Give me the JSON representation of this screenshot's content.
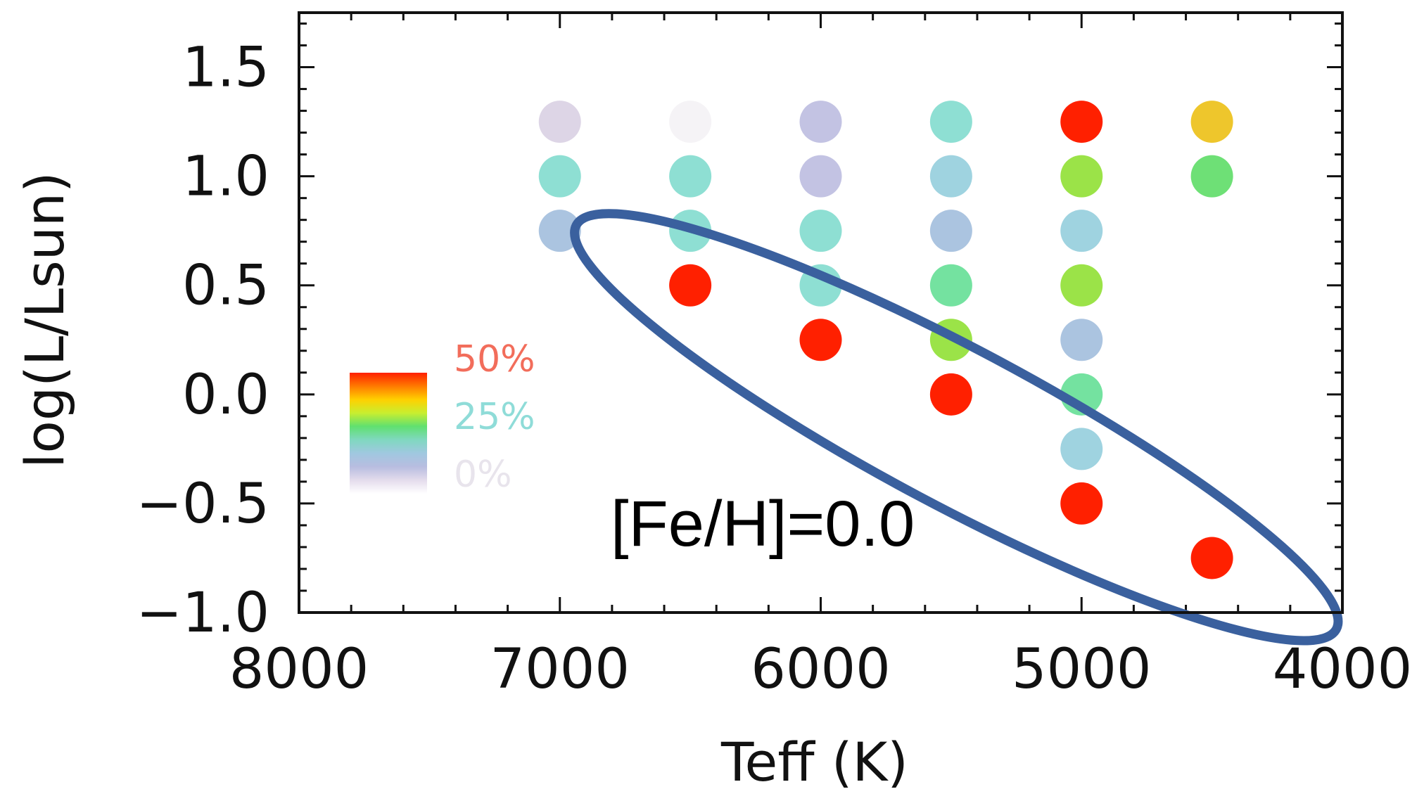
{
  "chart_data": {
    "type": "scatter",
    "xlabel": "Teff (K)",
    "ylabel": "log(L/Lsun)",
    "xlim": [
      8000,
      4000
    ],
    "ylim": [
      -1.0,
      1.5
    ],
    "x_reversed": true,
    "x_ticks": [
      "8000",
      "7000",
      "6000",
      "5000",
      "4000"
    ],
    "y_ticks": [
      "1.5",
      "1.0",
      "0.5",
      "0.0",
      "−0.5",
      "−1.0"
    ],
    "annotation": "[Fe/H]=0.0",
    "colorbar": {
      "labels": [
        "50%",
        "25%",
        "0%"
      ],
      "label_colors": [
        "#f26d5b",
        "#8fdcd8",
        "#e8e4ec"
      ],
      "colors": [
        "#ff2000",
        "#ff7a00",
        "#ffd000",
        "#c8ee30",
        "#60e070",
        "#80d8c0",
        "#a0c8e0",
        "#b8bde0",
        "#e4dcec",
        "#ffffff"
      ]
    },
    "colormap": [
      {
        "p": 0,
        "color": "#f5f3f6"
      },
      {
        "p": 5,
        "color": "#ddd5e6"
      },
      {
        "p": 10,
        "color": "#c3c3e3"
      },
      {
        "p": 15,
        "color": "#abc4e0"
      },
      {
        "p": 20,
        "color": "#9fd3e0"
      },
      {
        "p": 25,
        "color": "#8edfd3"
      },
      {
        "p": 30,
        "color": "#74e2a0"
      },
      {
        "p": 35,
        "color": "#6ee076"
      },
      {
        "p": 40,
        "color": "#9be348"
      },
      {
        "p": 45,
        "color": "#eec62c"
      },
      {
        "p": 50,
        "color": "#ff2000"
      }
    ],
    "points": [
      {
        "teff": 7000,
        "logL": 1.25,
        "pct": 5
      },
      {
        "teff": 7000,
        "logL": 1.0,
        "pct": 24
      },
      {
        "teff": 7000,
        "logL": 0.75,
        "pct": 15
      },
      {
        "teff": 6500,
        "logL": 1.25,
        "pct": 2
      },
      {
        "teff": 6500,
        "logL": 1.0,
        "pct": 26
      },
      {
        "teff": 6500,
        "logL": 0.75,
        "pct": 27
      },
      {
        "teff": 6500,
        "logL": 0.5,
        "pct": 50
      },
      {
        "teff": 6000,
        "logL": 1.25,
        "pct": 10
      },
      {
        "teff": 6000,
        "logL": 1.0,
        "pct": 9
      },
      {
        "teff": 6000,
        "logL": 0.75,
        "pct": 26
      },
      {
        "teff": 6000,
        "logL": 0.5,
        "pct": 27
      },
      {
        "teff": 6000,
        "logL": 0.25,
        "pct": 50
      },
      {
        "teff": 5500,
        "logL": 1.25,
        "pct": 25
      },
      {
        "teff": 5500,
        "logL": 1.0,
        "pct": 21
      },
      {
        "teff": 5500,
        "logL": 0.75,
        "pct": 14
      },
      {
        "teff": 5500,
        "logL": 0.5,
        "pct": 32
      },
      {
        "teff": 5500,
        "logL": 0.25,
        "pct": 42
      },
      {
        "teff": 5500,
        "logL": 0.0,
        "pct": 50
      },
      {
        "teff": 5000,
        "logL": 1.25,
        "pct": 50
      },
      {
        "teff": 5000,
        "logL": 1.0,
        "pct": 39
      },
      {
        "teff": 5000,
        "logL": 0.75,
        "pct": 21
      },
      {
        "teff": 5000,
        "logL": 0.5,
        "pct": 38
      },
      {
        "teff": 5000,
        "logL": 0.25,
        "pct": 16
      },
      {
        "teff": 5000,
        "logL": 0.0,
        "pct": 29
      },
      {
        "teff": 5000,
        "logL": -0.25,
        "pct": 19
      },
      {
        "teff": 5000,
        "logL": -0.5,
        "pct": 50
      },
      {
        "teff": 4500,
        "logL": 1.25,
        "pct": 45
      },
      {
        "teff": 4500,
        "logL": 1.0,
        "pct": 35
      },
      {
        "teff": 4500,
        "logL": -0.75,
        "pct": 50
      }
    ],
    "highlight_ellipse": {
      "center_teff": 5480,
      "center_logL": -0.15,
      "semi_teff": 1650,
      "semi_logL": 0.36,
      "angle_deg": 28,
      "color": "#3a609e"
    }
  }
}
